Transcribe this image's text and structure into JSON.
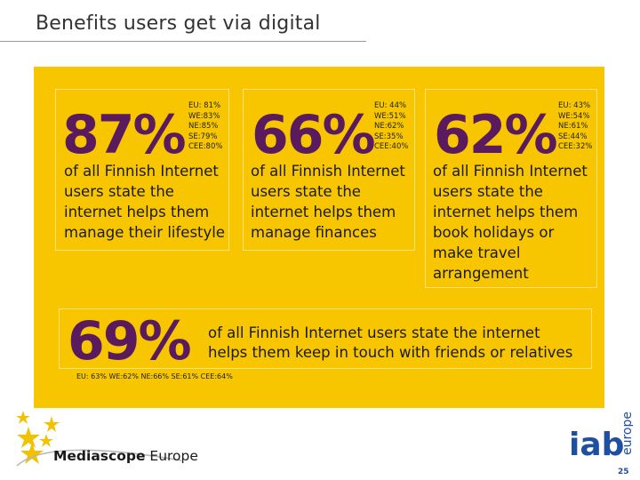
{
  "title": "Benefits users get via digital",
  "cards": [
    {
      "percent": "87%",
      "stats": [
        "EU: 81%",
        "WE:83%",
        "NE:85%",
        "SE:79%",
        "CEE:80%"
      ],
      "text": "of all Finnish Internet users state the internet helps them manage their lifestyle"
    },
    {
      "percent": "66%",
      "stats": [
        "EU: 44%",
        "WE:51%",
        "NE:62%",
        "SE:35%",
        "CEE:40%"
      ],
      "text": "of all Finnish Internet users state the internet helps them manage finances"
    },
    {
      "percent": "62%",
      "stats": [
        "EU: 43%",
        "WE:54%",
        "NE:61%",
        "SE:44%",
        "CEE:32%"
      ],
      "text": "of all Finnish Internet users state the internet helps them book holidays or make travel arrangement"
    }
  ],
  "wide_card": {
    "percent": "69%",
    "text": "of all Finnish Internet users state the internet helps them keep in touch with friends or relatives",
    "stats": "EU: 63% WE:62% NE:66% SE:61% CEE:64%"
  },
  "footer": {
    "brand_bold": "Mediascope",
    "brand_rest": " Europe",
    "iab_logo": "iab",
    "iab_sub": "europe",
    "page_number": "25"
  },
  "colors": {
    "panel": "#f7c600",
    "percent": "#5a1a5e",
    "star": "#f2c200",
    "iab_blue": "#1f4fa0"
  }
}
